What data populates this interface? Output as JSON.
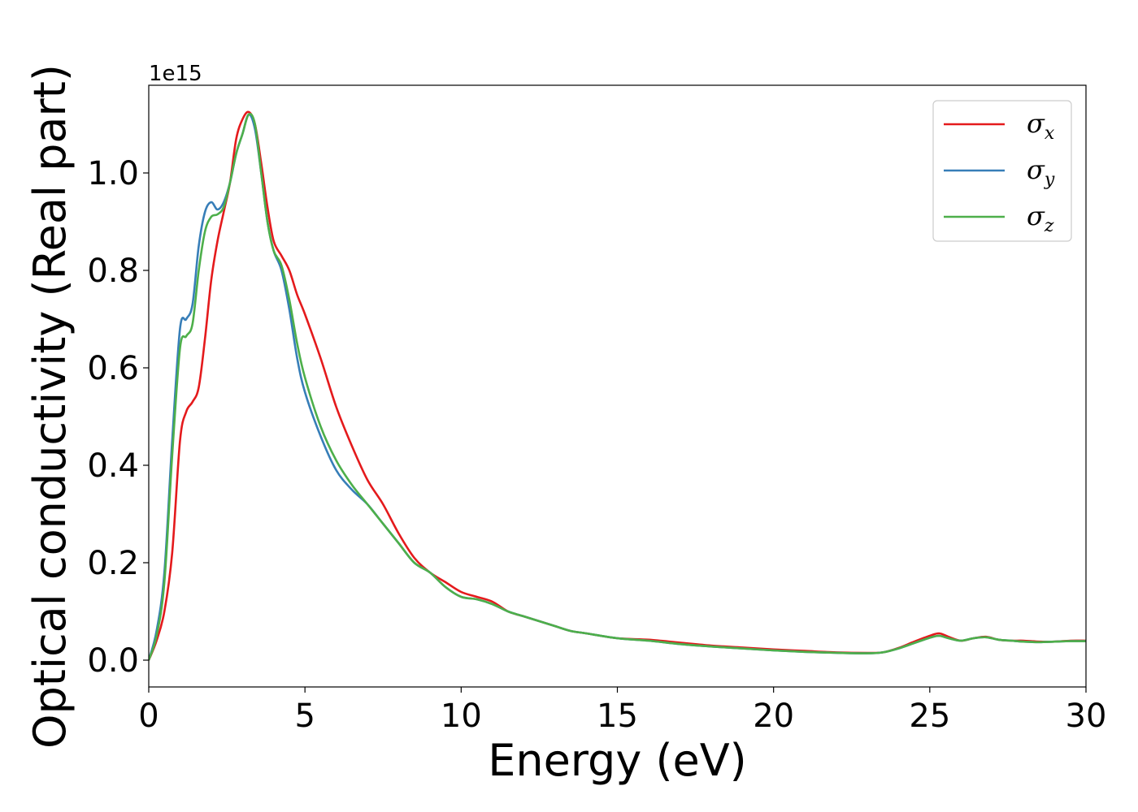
{
  "chart_data": {
    "type": "line",
    "xlabel": "Energy (eV)",
    "ylabel": "Optical conductivity (Real part)",
    "y_offset_label": "1e15",
    "xlim": [
      0,
      30
    ],
    "ylim": [
      -0.055,
      1.18
    ],
    "xticks": [
      0,
      5,
      10,
      15,
      20,
      25,
      30
    ],
    "xtick_labels": [
      "0",
      "5",
      "10",
      "15",
      "20",
      "25",
      "30"
    ],
    "yticks": [
      0.0,
      0.2,
      0.4,
      0.6,
      0.8,
      1.0
    ],
    "ytick_labels": [
      "0.0",
      "0.2",
      "0.4",
      "0.6",
      "0.8",
      "1.0"
    ],
    "grid": false,
    "legend_position": "top-right",
    "series": [
      {
        "name": "σx",
        "symbol": "σ",
        "sub": "x",
        "color": "#e41a1c",
        "x": [
          0,
          0.25,
          0.5,
          0.75,
          1.0,
          1.2,
          1.4,
          1.6,
          1.8,
          2.0,
          2.2,
          2.4,
          2.6,
          2.8,
          3.0,
          3.2,
          3.4,
          3.6,
          3.8,
          4.0,
          4.25,
          4.5,
          4.75,
          5.0,
          5.5,
          6.0,
          6.5,
          7.0,
          7.5,
          8.0,
          8.5,
          9.0,
          9.5,
          10.0,
          10.5,
          11.0,
          11.5,
          12.0,
          12.5,
          13.0,
          13.5,
          14.0,
          15.0,
          16.0,
          17.0,
          18.0,
          19.0,
          20.0,
          21.0,
          22.0,
          23.0,
          23.5,
          24.0,
          24.5,
          25.0,
          25.3,
          25.6,
          26.0,
          26.4,
          26.8,
          27.2,
          27.6,
          28.0,
          28.5,
          29.0,
          29.5,
          30.0
        ],
        "y": [
          0.0,
          0.04,
          0.1,
          0.22,
          0.45,
          0.51,
          0.53,
          0.56,
          0.66,
          0.78,
          0.86,
          0.92,
          0.98,
          1.07,
          1.11,
          1.125,
          1.1,
          1.02,
          0.93,
          0.86,
          0.83,
          0.8,
          0.75,
          0.71,
          0.62,
          0.52,
          0.44,
          0.37,
          0.32,
          0.26,
          0.21,
          0.18,
          0.16,
          0.14,
          0.13,
          0.12,
          0.1,
          0.09,
          0.08,
          0.07,
          0.06,
          0.055,
          0.045,
          0.042,
          0.036,
          0.03,
          0.026,
          0.022,
          0.019,
          0.016,
          0.015,
          0.016,
          0.025,
          0.038,
          0.05,
          0.055,
          0.048,
          0.04,
          0.045,
          0.048,
          0.042,
          0.04,
          0.04,
          0.038,
          0.038,
          0.04,
          0.04
        ]
      },
      {
        "name": "σy",
        "symbol": "σ",
        "sub": "y",
        "color": "#377eb8",
        "x": [
          0,
          0.25,
          0.5,
          0.75,
          1.0,
          1.2,
          1.4,
          1.6,
          1.8,
          2.0,
          2.2,
          2.4,
          2.6,
          2.8,
          3.0,
          3.2,
          3.4,
          3.6,
          3.8,
          4.0,
          4.25,
          4.5,
          4.75,
          5.0,
          5.5,
          6.0,
          6.5,
          7.0,
          7.5,
          8.0,
          8.5,
          9.0,
          9.5,
          10.0,
          10.5,
          11.0,
          11.5,
          12.0,
          12.5,
          13.0,
          13.5,
          14.0,
          15.0,
          16.0,
          17.0,
          18.0,
          19.0,
          20.0,
          21.0,
          22.0,
          23.0,
          23.5,
          24.0,
          24.5,
          25.0,
          25.3,
          25.6,
          26.0,
          26.4,
          26.8,
          27.2,
          27.6,
          28.0,
          28.5,
          29.0,
          29.5,
          30.0
        ],
        "y": [
          0.0,
          0.06,
          0.18,
          0.45,
          0.68,
          0.7,
          0.73,
          0.85,
          0.92,
          0.94,
          0.925,
          0.94,
          0.98,
          1.04,
          1.08,
          1.12,
          1.09,
          1.0,
          0.9,
          0.84,
          0.8,
          0.72,
          0.62,
          0.55,
          0.46,
          0.39,
          0.35,
          0.32,
          0.28,
          0.24,
          0.2,
          0.18,
          0.15,
          0.13,
          0.125,
          0.115,
          0.1,
          0.09,
          0.08,
          0.07,
          0.06,
          0.055,
          0.045,
          0.04,
          0.033,
          0.028,
          0.024,
          0.02,
          0.017,
          0.015,
          0.014,
          0.016,
          0.024,
          0.035,
          0.046,
          0.05,
          0.045,
          0.04,
          0.045,
          0.047,
          0.042,
          0.04,
          0.038,
          0.037,
          0.038,
          0.039,
          0.039
        ]
      },
      {
        "name": "σz",
        "symbol": "σ",
        "sub": "z",
        "color": "#4daf4a",
        "x": [
          0,
          0.25,
          0.5,
          0.75,
          1.0,
          1.2,
          1.4,
          1.6,
          1.8,
          2.0,
          2.2,
          2.4,
          2.6,
          2.8,
          3.0,
          3.2,
          3.4,
          3.6,
          3.8,
          4.0,
          4.25,
          4.5,
          4.75,
          5.0,
          5.5,
          6.0,
          6.5,
          7.0,
          7.5,
          8.0,
          8.5,
          9.0,
          9.5,
          10.0,
          10.5,
          11.0,
          11.5,
          12.0,
          12.5,
          13.0,
          13.5,
          14.0,
          15.0,
          16.0,
          17.0,
          18.0,
          19.0,
          20.0,
          21.0,
          22.0,
          23.0,
          23.5,
          24.0,
          24.5,
          25.0,
          25.3,
          25.6,
          26.0,
          26.4,
          26.8,
          27.2,
          27.6,
          28.0,
          28.5,
          29.0,
          29.5,
          30.0
        ],
        "y": [
          0.0,
          0.05,
          0.16,
          0.42,
          0.64,
          0.665,
          0.69,
          0.8,
          0.88,
          0.91,
          0.915,
          0.93,
          0.98,
          1.04,
          1.08,
          1.12,
          1.1,
          1.0,
          0.9,
          0.84,
          0.81,
          0.74,
          0.65,
          0.58,
          0.48,
          0.41,
          0.36,
          0.32,
          0.28,
          0.24,
          0.2,
          0.18,
          0.15,
          0.13,
          0.125,
          0.115,
          0.1,
          0.09,
          0.08,
          0.07,
          0.06,
          0.055,
          0.045,
          0.04,
          0.033,
          0.028,
          0.024,
          0.02,
          0.017,
          0.015,
          0.014,
          0.016,
          0.024,
          0.035,
          0.046,
          0.05,
          0.045,
          0.04,
          0.045,
          0.047,
          0.042,
          0.04,
          0.038,
          0.037,
          0.038,
          0.039,
          0.039
        ]
      }
    ]
  }
}
